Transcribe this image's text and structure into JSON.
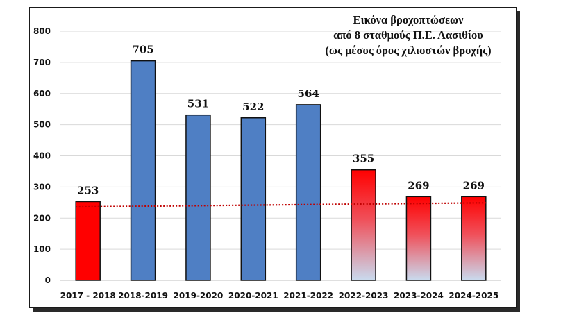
{
  "chart_data": {
    "type": "bar",
    "title": [
      "Εικόνα βροχοπτώσεων",
      "από 8 σταθμούς Π.Ε. Λασιθίου",
      "(ως μέσος όρος χιλιοστών βροχής)"
    ],
    "categories": [
      "2017 - 2018",
      "2018-2019",
      "2019-2020",
      "2020-2021",
      "2021-2022",
      "2022-2023",
      "2023-2024",
      "2024-2025"
    ],
    "values": [
      253,
      705,
      531,
      522,
      564,
      355,
      269,
      269
    ],
    "bar_styles": [
      "red",
      "blue",
      "blue",
      "blue",
      "blue",
      "red-gradient",
      "red-gradient",
      "red-gradient"
    ],
    "yticks": [
      0,
      100,
      200,
      300,
      400,
      500,
      600,
      700,
      800
    ],
    "ylim": [
      0,
      800
    ],
    "xlabel": "",
    "ylabel": "",
    "grid": true,
    "legend": "none",
    "trendline": {
      "style": "dotted",
      "color": "#c00000",
      "start": 236,
      "end": 249
    },
    "colors": {
      "blue": "#4f7fc4",
      "red": "#ff0000",
      "red_gradient_bottom": "#c9dbef",
      "gridline": "#d9d9d9"
    }
  }
}
